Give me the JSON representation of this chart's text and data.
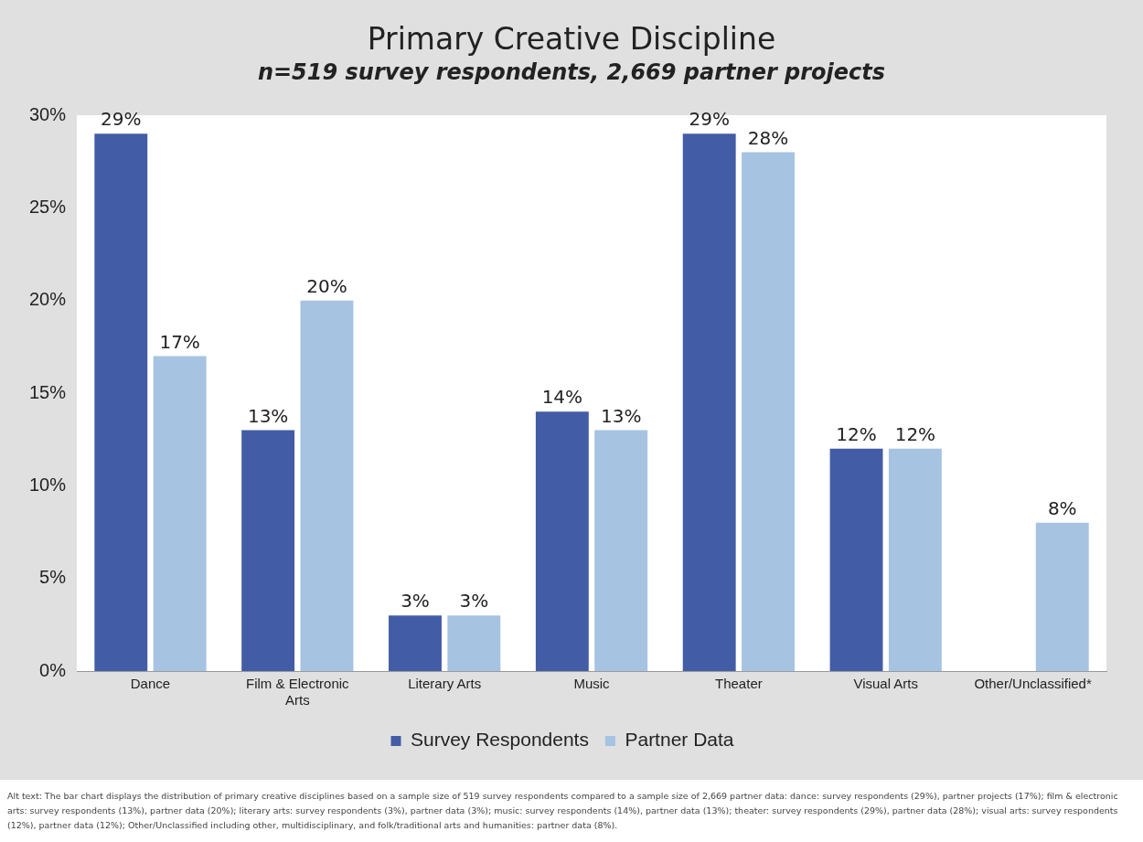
{
  "chart_data": {
    "type": "bar",
    "title": "Primary Creative Discipline",
    "subtitle": "n=519 survey respondents, 2,669 partner projects",
    "categories": [
      "Dance",
      "Film & Electronic Arts",
      "Literary Arts",
      "Music",
      "Theater",
      "Visual Arts",
      "Other/Unclassified*"
    ],
    "series": [
      {
        "name": "Survey Respondents",
        "color": "#435ca6",
        "values": [
          29,
          13,
          3,
          14,
          29,
          12,
          null
        ],
        "value_labels": [
          "29%",
          "13%",
          "3%",
          "14%",
          "29%",
          "12%",
          null
        ]
      },
      {
        "name": "Partner Data",
        "color": "#a6c3e1",
        "values": [
          17,
          20,
          3,
          13,
          28,
          12,
          8
        ],
        "value_labels": [
          "17%",
          "20%",
          "3%",
          "13%",
          "28%",
          "12%",
          "8%"
        ]
      }
    ],
    "ylim": [
      0,
      30
    ],
    "yticks": [
      {
        "value": 0,
        "label": "0%"
      },
      {
        "value": 5,
        "label": "5%"
      },
      {
        "value": 10,
        "label": "10%"
      },
      {
        "value": 15,
        "label": "15%"
      },
      {
        "value": 20,
        "label": "20%"
      },
      {
        "value": 25,
        "label": "25%"
      },
      {
        "value": 30,
        "label": "30%"
      }
    ],
    "grid": false,
    "legend": "bottom",
    "annotations": [
      "Alt text: The bar chart displays the distribution of primary creative disciplines based on a sample size of 519 survey respondents compared to a sample size of 2,669 partner data: dance: survey respondents (29%), partner projects (17%); film & electronic arts: survey respondents (13%), partner data (20%); literary arts: survey respondents (3%), partner data (3%); music: survey respondents (14%), partner data (13%); theater: survey respondents (29%), partner data (28%); visual arts: survey respondents (12%), partner data (12%); Other/Unclassified including other, multidisciplinary, and folk/traditional arts and humanities: partner data (8%)."
    ]
  }
}
